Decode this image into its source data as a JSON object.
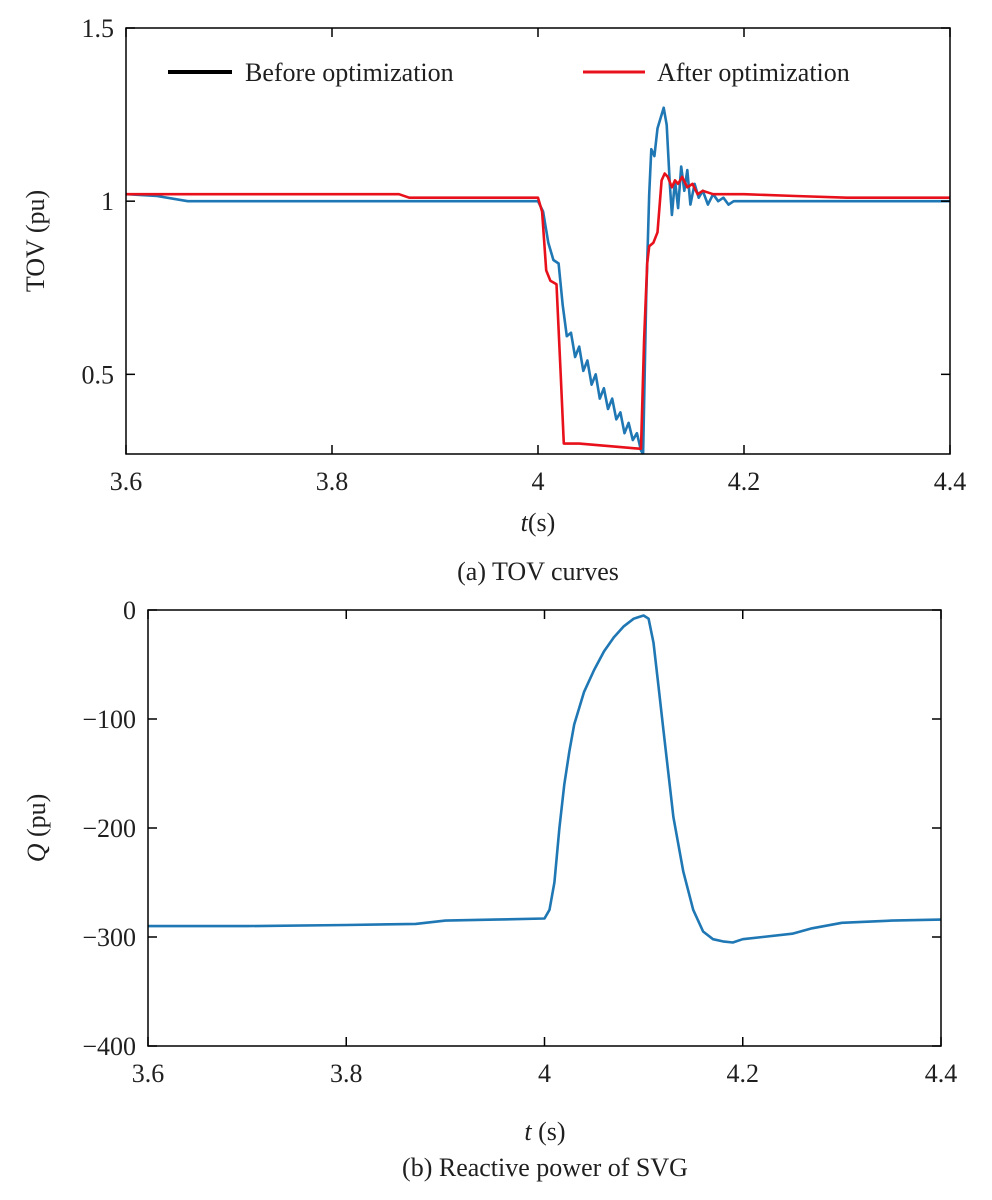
{
  "chart_data": [
    {
      "type": "line",
      "caption": "(a) TOV curves",
      "xlabel_italic": "t",
      "xlabel_rest": "(s)",
      "ylabel": "TOV (pu)",
      "xlim": [
        3.6,
        4.4
      ],
      "ylim": [
        0.27,
        1.5
      ],
      "xticks": [
        3.6,
        3.8,
        4.0,
        4.2,
        4.4
      ],
      "xtick_labels": [
        "3.6",
        "3.8",
        "4",
        "4.2",
        "4.4"
      ],
      "yticks": [
        0.5,
        1.0,
        1.5
      ],
      "ytick_labels": [
        "0.5",
        "1",
        "1.5"
      ],
      "legend": {
        "position": "top",
        "entries": [
          {
            "label": "Before optimization",
            "color": "#000000"
          },
          {
            "label": "After optimization",
            "color": "#e8101a"
          }
        ]
      },
      "series": [
        {
          "color": "#1f77b4",
          "x": [
            3.6,
            3.63,
            3.66,
            3.7,
            3.8,
            3.9,
            3.95,
            4.0,
            4.005,
            4.01,
            4.015,
            4.02,
            4.024,
            4.028,
            4.032,
            4.036,
            4.04,
            4.044,
            4.048,
            4.052,
            4.056,
            4.06,
            4.064,
            4.068,
            4.072,
            4.076,
            4.08,
            4.084,
            4.088,
            4.092,
            4.096,
            4.1,
            4.102,
            4.105,
            4.108,
            4.11,
            4.113,
            4.116,
            4.119,
            4.122,
            4.125,
            4.128,
            4.13,
            4.133,
            4.136,
            4.139,
            4.142,
            4.145,
            4.148,
            4.152,
            4.156,
            4.16,
            4.165,
            4.17,
            4.175,
            4.18,
            4.185,
            4.19,
            4.2,
            4.22,
            4.25,
            4.3,
            4.35,
            4.4
          ],
          "y": [
            1.02,
            1.015,
            1.0,
            1.0,
            1.0,
            1.0,
            1.0,
            1.0,
            0.97,
            0.88,
            0.83,
            0.82,
            0.7,
            0.61,
            0.62,
            0.55,
            0.58,
            0.51,
            0.54,
            0.47,
            0.5,
            0.43,
            0.46,
            0.4,
            0.43,
            0.37,
            0.39,
            0.33,
            0.36,
            0.31,
            0.33,
            0.28,
            0.27,
            0.72,
            1.02,
            1.15,
            1.13,
            1.21,
            1.24,
            1.27,
            1.22,
            1.05,
            0.96,
            1.06,
            0.98,
            1.1,
            1.03,
            1.09,
            0.99,
            1.05,
            1.01,
            1.03,
            0.99,
            1.02,
            1.0,
            1.01,
            0.99,
            1.0,
            1.0,
            1.0,
            1.0,
            1.0,
            1.0,
            1.0
          ]
        },
        {
          "color": "#e8101a",
          "x": [
            3.6,
            3.7,
            3.8,
            3.865,
            3.875,
            3.9,
            3.95,
            4.0,
            4.004,
            4.008,
            4.012,
            4.018,
            4.022,
            4.025,
            4.03,
            4.04,
            4.06,
            4.08,
            4.1,
            4.103,
            4.106,
            4.108,
            4.112,
            4.116,
            4.12,
            4.123,
            4.126,
            4.13,
            4.133,
            4.136,
            4.14,
            4.145,
            4.15,
            4.155,
            4.16,
            4.17,
            4.2,
            4.25,
            4.3,
            4.35,
            4.4
          ],
          "y": [
            1.02,
            1.02,
            1.02,
            1.02,
            1.01,
            1.01,
            1.01,
            1.01,
            0.97,
            0.8,
            0.77,
            0.76,
            0.5,
            0.3,
            0.3,
            0.3,
            0.295,
            0.29,
            0.285,
            0.6,
            0.82,
            0.87,
            0.88,
            0.91,
            1.06,
            1.08,
            1.07,
            1.04,
            1.06,
            1.05,
            1.07,
            1.04,
            1.05,
            1.02,
            1.03,
            1.02,
            1.02,
            1.015,
            1.01,
            1.01,
            1.01
          ]
        }
      ]
    },
    {
      "type": "line",
      "caption": "(b) Reactive power of SVG",
      "xlabel_italic": "t",
      "xlabel_rest": " (s)",
      "ylabel_italic": "Q",
      "ylabel_rest": " (pu)",
      "xlim": [
        3.6,
        4.4
      ],
      "ylim": [
        -400,
        0
      ],
      "xticks": [
        3.6,
        3.8,
        4.0,
        4.2,
        4.4
      ],
      "xtick_labels": [
        "3.6",
        "3.8",
        "4",
        "4.2",
        "4.4"
      ],
      "yticks": [
        -400,
        -300,
        -200,
        -100,
        0
      ],
      "ytick_labels": [
        "−400",
        "−300",
        "−200",
        "−100",
        "0"
      ],
      "series": [
        {
          "color": "#1f77b4",
          "x": [
            3.6,
            3.7,
            3.8,
            3.87,
            3.9,
            3.95,
            4.0,
            4.005,
            4.01,
            4.015,
            4.02,
            4.025,
            4.03,
            4.04,
            4.05,
            4.06,
            4.07,
            4.08,
            4.09,
            4.1,
            4.105,
            4.11,
            4.115,
            4.12,
            4.125,
            4.13,
            4.14,
            4.15,
            4.16,
            4.17,
            4.18,
            4.19,
            4.2,
            4.22,
            4.25,
            4.27,
            4.3,
            4.35,
            4.4
          ],
          "y": [
            -290,
            -290,
            -289,
            -288,
            -285,
            -284,
            -283,
            -275,
            -250,
            -200,
            -160,
            -130,
            -105,
            -75,
            -55,
            -38,
            -25,
            -15,
            -8,
            -5,
            -8,
            -30,
            -70,
            -110,
            -150,
            -190,
            -240,
            -275,
            -295,
            -302,
            -304,
            -305,
            -302,
            -300,
            -297,
            -292,
            -287,
            -285,
            -284
          ]
        }
      ]
    }
  ]
}
